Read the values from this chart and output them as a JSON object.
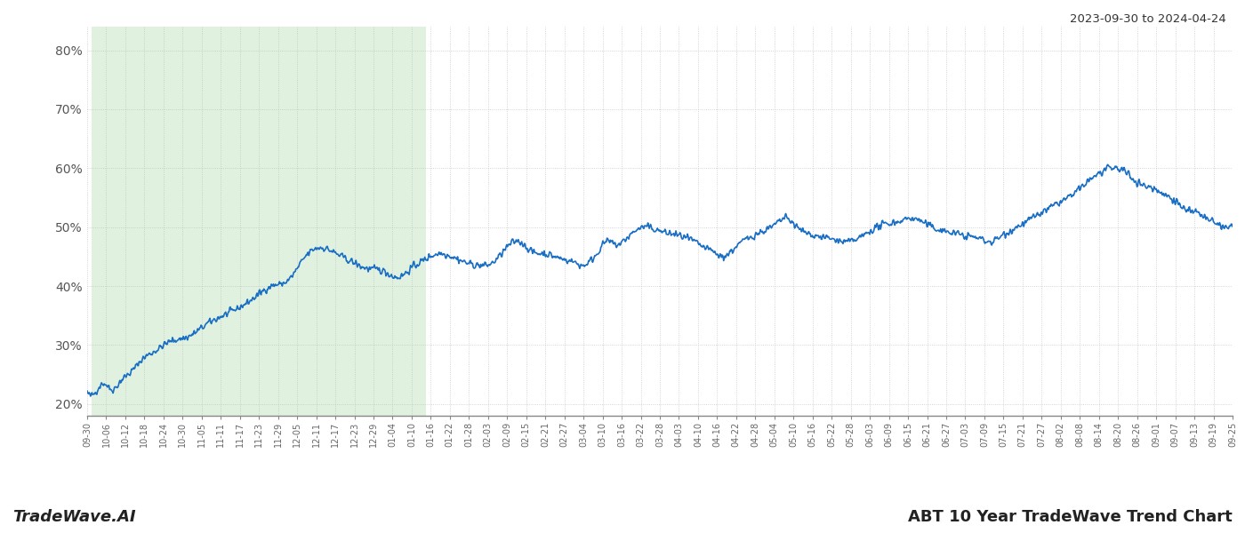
{
  "title_top_right": "2023-09-30 to 2024-04-24",
  "title_bottom_right": "ABT 10 Year TradeWave Trend Chart",
  "title_bottom_left": "TradeWave.AI",
  "line_color": "#1a6fc4",
  "line_width": 1.2,
  "shaded_region_color": "#c8e6c8",
  "shaded_region_alpha": 0.55,
  "background_color": "#ffffff",
  "grid_color": "#bbbbbb",
  "ylim": [
    18,
    84
  ],
  "yticks": [
    20,
    30,
    40,
    50,
    60,
    70,
    80
  ],
  "x_tick_labels": [
    "09-30",
    "10-06",
    "10-12",
    "10-18",
    "10-24",
    "10-30",
    "11-05",
    "11-11",
    "11-17",
    "11-23",
    "11-29",
    "12-05",
    "12-11",
    "12-17",
    "12-23",
    "12-29",
    "01-04",
    "01-10",
    "01-16",
    "01-22",
    "01-28",
    "02-03",
    "02-09",
    "02-15",
    "02-21",
    "02-27",
    "03-04",
    "03-10",
    "03-16",
    "03-22",
    "03-28",
    "04-03",
    "04-10",
    "04-16",
    "04-22",
    "04-28",
    "05-04",
    "05-10",
    "05-16",
    "05-22",
    "05-28",
    "06-03",
    "06-09",
    "06-15",
    "06-21",
    "06-27",
    "07-03",
    "07-09",
    "07-15",
    "07-21",
    "07-27",
    "08-02",
    "08-08",
    "08-14",
    "08-20",
    "08-26",
    "09-01",
    "09-07",
    "09-13",
    "09-19",
    "09-25"
  ]
}
